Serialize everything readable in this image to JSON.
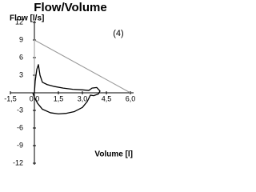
{
  "chart_data": {
    "type": "line",
    "title": "Flow/Volume",
    "ylabel": "Flow [l/s]",
    "xlabel": "Volume [l]",
    "annotation": "(4)",
    "xlim": [
      -1.5,
      6
    ],
    "ylim": [
      -12,
      12
    ],
    "xticks": [
      {
        "value": -1.5,
        "label": "-1,5"
      },
      {
        "value": 0,
        "label": "0,0"
      },
      {
        "value": 1.5,
        "label": "1,5"
      },
      {
        "value": 3,
        "label": "3,0"
      },
      {
        "value": 4.5,
        "label": "4,5"
      },
      {
        "value": 6,
        "label": "6,0"
      }
    ],
    "yticks": [
      12,
      9,
      6,
      3,
      -3,
      -6,
      -9,
      -12
    ],
    "series": [
      {
        "color": "#999999",
        "x": [
          0,
          0,
          6
        ],
        "values": [
          0,
          9,
          0
        ]
      },
      {
        "color": "#000000",
        "x": [
          0,
          0.05,
          0.15,
          0.25,
          0.35,
          0.5,
          0.8,
          1.2,
          1.8,
          2.4,
          3.0,
          3.4,
          3.6,
          3.9,
          4.1,
          4.0,
          3.7,
          3.5,
          3.3,
          3.0,
          2.5,
          2.0,
          1.5,
          1.0,
          0.5,
          0.2,
          0,
          -0.1
        ],
        "values": [
          0,
          2,
          4,
          4.8,
          3,
          1.8,
          1.4,
          1.1,
          0.8,
          0.6,
          0.5,
          0.4,
          0.8,
          0.9,
          0.3,
          -0.2,
          -0.5,
          -0.4,
          -1.5,
          -2.5,
          -3.2,
          -3.5,
          -3.6,
          -3.4,
          -2.8,
          -1.8,
          -0.8,
          0
        ]
      }
    ]
  }
}
